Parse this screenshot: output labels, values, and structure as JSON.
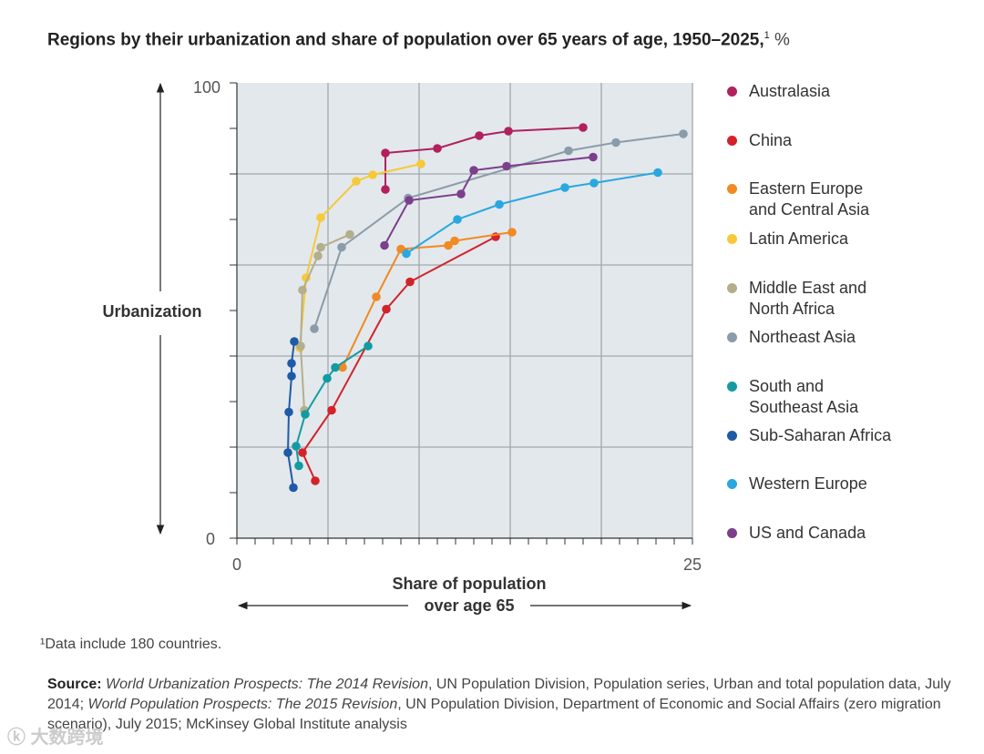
{
  "title": {
    "main": "Regions by their urbanization and share of population over 65 years of age, 1950–2025,",
    "footnote_mark": "1",
    "unit": "%"
  },
  "footnote": "¹Data include 180 countries.",
  "source": {
    "label": "Source:",
    "parts": [
      {
        "text": "World Urbanization Prospects: The 2014 Revision",
        "italic": true
      },
      {
        "text": ", UN Population Division, Population series, Urban and total population data, July 2014; ",
        "italic": false
      },
      {
        "text": "World Population Prospects: The 2015 Revision",
        "italic": true
      },
      {
        "text": ", UN Population Division, Department of Economic and Social Affairs (zero migration scenario), July 2015; McKinsey Global Institute analysis",
        "italic": false
      }
    ]
  },
  "watermark": "大数跨境",
  "chart_data": {
    "type": "scatter",
    "connected": true,
    "title": "Regions by their urbanization and share of population over 65 years of age, 1950–2025",
    "xlabel": "Share of population over age 65",
    "xlabel_lines": [
      "Share of population",
      "over age 65"
    ],
    "ylabel": "Urbanization",
    "xlim": [
      0,
      25
    ],
    "ylim": [
      0,
      100
    ],
    "x_tick_labels": [
      "0",
      "25"
    ],
    "y_tick_labels": [
      "0",
      "100"
    ],
    "grid": true,
    "legend_position": "right",
    "series": [
      {
        "name": "Australasia",
        "color": "#b0215e",
        "x": [
          8.15,
          8.15,
          11.0,
          13.3,
          14.9,
          19.0
        ],
        "y": [
          76.6,
          84.6,
          85.6,
          88.4,
          89.4,
          90.2
        ]
      },
      {
        "name": "China",
        "color": "#d2232a",
        "x": [
          4.3,
          3.6,
          5.2,
          8.2,
          9.5,
          14.2
        ],
        "y": [
          12.6,
          18.8,
          28.1,
          50.3,
          56.3,
          66.2
        ]
      },
      {
        "name": "Eastern Europe\nand Central Asia",
        "color": "#f08a24",
        "x": [
          5.8,
          7.65,
          9.0,
          11.6,
          11.95,
          15.1
        ],
        "y": [
          37.5,
          53.0,
          63.5,
          64.3,
          65.3,
          67.2
        ]
      },
      {
        "name": "Latin America",
        "color": "#f6c93a",
        "x": [
          3.45,
          3.8,
          4.6,
          6.55,
          7.45,
          10.1
        ],
        "y": [
          41.8,
          57.2,
          70.4,
          78.4,
          79.8,
          82.2
        ]
      },
      {
        "name": "Middle East and\nNorth Africa",
        "color": "#b3ae8c",
        "x": [
          3.7,
          3.5,
          3.6,
          4.45,
          4.6,
          6.2
        ],
        "y": [
          28.1,
          42.2,
          54.5,
          62.0,
          63.9,
          66.7
        ]
      },
      {
        "name": "Northeast Asia",
        "color": "#8a9ca9",
        "x": [
          4.25,
          5.75,
          9.4,
          18.2,
          20.8,
          24.5
        ],
        "y": [
          46.0,
          63.9,
          74.7,
          85.1,
          86.9,
          88.8
        ]
      },
      {
        "name": "South and\nSoutheast Asia",
        "color": "#139ba3",
        "x": [
          3.4,
          3.25,
          3.75,
          4.95,
          5.4,
          7.2
        ],
        "y": [
          15.9,
          20.2,
          27.2,
          35.1,
          37.5,
          42.2
        ]
      },
      {
        "name": "Sub-Saharan Africa",
        "color": "#1f5aa6",
        "x": [
          3.1,
          2.8,
          2.85,
          3.0,
          3.0,
          3.15
        ],
        "y": [
          11.1,
          18.8,
          27.7,
          35.6,
          38.4,
          43.2
        ]
      },
      {
        "name": "Western Europe",
        "color": "#29a8e0",
        "x": [
          9.3,
          12.1,
          14.4,
          18.0,
          19.6,
          23.1
        ],
        "y": [
          62.5,
          70.0,
          73.3,
          77.0,
          78.0,
          80.3
        ]
      },
      {
        "name": "US and Canada",
        "color": "#7b3f8c",
        "x": [
          8.1,
          9.45,
          12.3,
          13.0,
          14.8,
          19.55
        ],
        "y": [
          64.3,
          74.2,
          75.6,
          80.8,
          81.7,
          83.7
        ]
      }
    ]
  }
}
